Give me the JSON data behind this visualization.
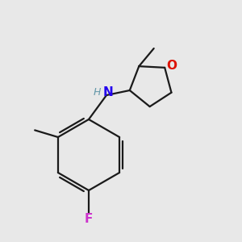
{
  "bg": "#e8e8e8",
  "bond_color": "#1a1a1a",
  "N_color": "#2200ee",
  "O_color": "#dd1100",
  "F_color": "#cc33cc",
  "H_color": "#6699aa",
  "lw": 1.6,
  "figsize": [
    3.0,
    3.0
  ],
  "dpi": 100,
  "xlim": [
    -1.0,
    6.0
  ],
  "ylim": [
    -3.5,
    4.0
  ]
}
